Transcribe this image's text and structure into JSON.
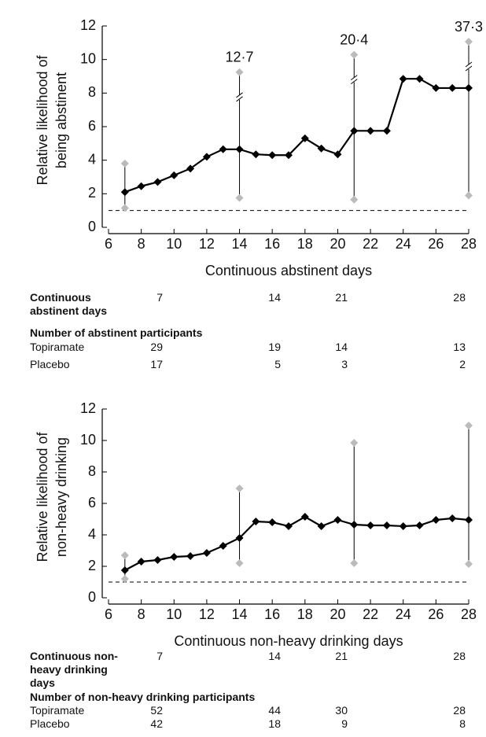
{
  "chart_data": [
    {
      "type": "line",
      "ylabel": [
        "Relative likelihood of",
        "being abstinent"
      ],
      "xlabel": "Continuous abstinent days",
      "x": [
        7,
        8,
        9,
        10,
        11,
        12,
        13,
        14,
        15,
        16,
        17,
        18,
        19,
        20,
        21,
        22,
        23,
        24,
        25,
        26,
        27,
        28
      ],
      "series": [
        {
          "color": "#000000",
          "values": [
            2.1,
            2.45,
            2.7,
            3.1,
            3.5,
            4.2,
            4.65,
            4.65,
            4.35,
            4.3,
            4.3,
            5.3,
            4.7,
            4.35,
            5.75,
            5.75,
            5.75,
            8.85,
            8.85,
            8.3,
            8.3,
            8.3
          ]
        }
      ],
      "errorbars": {
        "x": [
          7,
          14,
          21,
          28
        ],
        "lower": [
          1.15,
          1.75,
          1.65,
          1.9
        ],
        "upper": [
          3.8,
          12.7,
          20.4,
          37.3
        ],
        "value_labels": [
          null,
          "12·7",
          "20·4",
          "37·3"
        ],
        "color": "#bbbbbb"
      },
      "reference_line": 1,
      "xlim": [
        6,
        28
      ],
      "xticks": [
        6,
        8,
        10,
        12,
        14,
        16,
        18,
        20,
        22,
        24,
        26,
        28
      ],
      "ylim": [
        0,
        12
      ],
      "yticks": [
        0,
        2,
        4,
        6,
        8,
        10,
        12
      ]
    },
    {
      "type": "line",
      "ylabel": [
        "Relative likelihood of",
        "non-heavy drinking"
      ],
      "xlabel": "Continuous non-heavy drinking days",
      "x": [
        7,
        8,
        9,
        10,
        11,
        12,
        13,
        14,
        15,
        16,
        17,
        18,
        19,
        20,
        21,
        22,
        23,
        24,
        25,
        26,
        27,
        28
      ],
      "series": [
        {
          "color": "#000000",
          "values": [
            1.75,
            2.3,
            2.4,
            2.6,
            2.65,
            2.85,
            3.3,
            3.8,
            4.85,
            4.8,
            4.55,
            5.15,
            4.55,
            4.95,
            4.65,
            4.6,
            4.6,
            4.55,
            4.6,
            4.95,
            5.05,
            4.95
          ]
        }
      ],
      "errorbars": {
        "x": [
          7,
          14,
          21,
          28
        ],
        "lower": [
          1.2,
          2.2,
          2.2,
          2.15
        ],
        "upper": [
          2.7,
          6.95,
          9.85,
          10.95
        ],
        "color": "#bbbbbb"
      },
      "reference_line": 1,
      "xlim": [
        6,
        28
      ],
      "xticks": [
        6,
        8,
        10,
        12,
        14,
        16,
        18,
        20,
        22,
        24,
        26,
        28
      ],
      "ylim": [
        0,
        12
      ],
      "yticks": [
        0,
        2,
        4,
        6,
        8,
        10,
        12
      ]
    }
  ],
  "tables": [
    {
      "header": {
        "label": "Continuous abstinent days",
        "values": [
          7,
          14,
          21,
          28
        ]
      },
      "subtitle": "Number of abstinent participants",
      "rows": [
        {
          "label": "Topiramate",
          "values": [
            29,
            19,
            14,
            13
          ]
        },
        {
          "label": "Placebo",
          "values": [
            17,
            5,
            3,
            2
          ]
        }
      ]
    },
    {
      "header": {
        "label": "Continuous non-heavy drinking days",
        "values": [
          7,
          14,
          21,
          28
        ]
      },
      "subtitle": "Number of non-heavy drinking participants",
      "rows": [
        {
          "label": "Topiramate",
          "values": [
            52,
            44,
            30,
            28
          ]
        },
        {
          "label": "Placebo",
          "values": [
            42,
            18,
            9,
            8
          ]
        }
      ]
    }
  ]
}
